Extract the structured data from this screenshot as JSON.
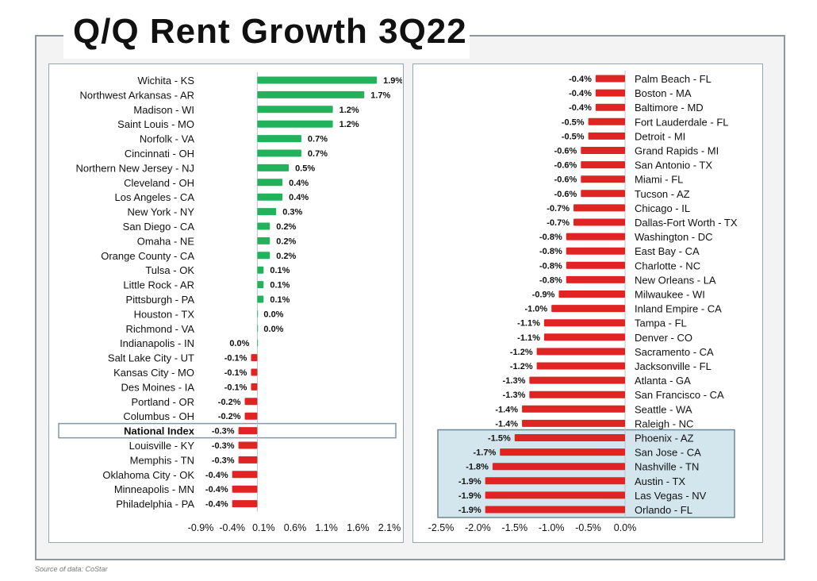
{
  "title": "Q/Q Rent Growth 3Q22",
  "source": "Source of data: CoStar",
  "chart_data": [
    {
      "type": "bar",
      "orientation": "horizontal",
      "xlim": [
        -0.9,
        2.1
      ],
      "xticks": [
        "-0.9%",
        "-0.4%",
        "0.1%",
        "0.6%",
        "1.1%",
        "1.6%",
        "2.1%"
      ],
      "highlighted": [
        "National Index"
      ],
      "categories": [
        "Wichita - KS",
        "Northwest Arkansas - AR",
        "Madison - WI",
        "Saint Louis - MO",
        "Norfolk - VA",
        "Cincinnati - OH",
        "Northern New Jersey - NJ",
        "Cleveland - OH",
        "Los Angeles - CA",
        "New York - NY",
        "San Diego - CA",
        "Omaha - NE",
        "Orange County - CA",
        "Tulsa - OK",
        "Little Rock - AR",
        "Pittsburgh - PA",
        "Houston - TX",
        "Richmond - VA",
        "Indianapolis - IN",
        "Salt Lake City - UT",
        "Kansas City - MO",
        "Des Moines - IA",
        "Portland - OR",
        "Columbus - OH",
        "National Index",
        "Louisville - KY",
        "Memphis - TN",
        "Oklahoma City - OK",
        "Minneapolis - MN",
        "Philadelphia - PA"
      ],
      "values": [
        1.9,
        1.7,
        1.2,
        1.2,
        0.7,
        0.7,
        0.5,
        0.4,
        0.4,
        0.3,
        0.2,
        0.2,
        0.2,
        0.1,
        0.1,
        0.1,
        0.0,
        0.0,
        0.0,
        -0.1,
        -0.1,
        -0.1,
        -0.2,
        -0.2,
        -0.3,
        -0.3,
        -0.3,
        -0.4,
        -0.4,
        -0.4
      ],
      "value_labels": [
        "1.9%",
        "1.7%",
        "1.2%",
        "1.2%",
        "0.7%",
        "0.7%",
        "0.5%",
        "0.4%",
        "0.4%",
        "0.3%",
        "0.2%",
        "0.2%",
        "0.2%",
        "0.1%",
        "0.1%",
        "0.1%",
        "0.0%",
        "0.0%",
        "0.0%",
        "-0.1%",
        "-0.1%",
        "-0.1%",
        "-0.2%",
        "-0.2%",
        "-0.3%",
        "-0.3%",
        "-0.3%",
        "-0.4%",
        "-0.4%",
        "-0.4%"
      ],
      "colors": {
        "positive": "#22b25c",
        "negative": "#e02424"
      }
    },
    {
      "type": "bar",
      "orientation": "horizontal",
      "xlim": [
        -2.5,
        0.0
      ],
      "xticks": [
        "-2.5%",
        "-2.0%",
        "-1.5%",
        "-1.0%",
        "-0.5%",
        "0.0%"
      ],
      "highlighted": [
        "Phoenix - AZ",
        "San Jose - CA",
        "Nashville - TN",
        "Austin - TX",
        "Las Vegas - NV",
        "Orlando - FL"
      ],
      "categories": [
        "Palm Beach - FL",
        "Boston - MA",
        "Baltimore - MD",
        "Fort Lauderdale - FL",
        "Detroit - MI",
        "Grand Rapids - MI",
        "San Antonio - TX",
        "Miami - FL",
        "Tucson - AZ",
        "Chicago - IL",
        "Dallas-Fort Worth - TX",
        "Washington - DC",
        "East Bay - CA",
        "Charlotte - NC",
        "New Orleans - LA",
        "Milwaukee - WI",
        "Inland Empire - CA",
        "Tampa - FL",
        "Denver - CO",
        "Sacramento - CA",
        "Jacksonville - FL",
        "Atlanta - GA",
        "San Francisco - CA",
        "Seattle - WA",
        "Raleigh - NC",
        "Phoenix - AZ",
        "San Jose - CA",
        "Nashville - TN",
        "Austin - TX",
        "Las Vegas - NV",
        "Orlando - FL"
      ],
      "values": [
        -0.4,
        -0.4,
        -0.4,
        -0.5,
        -0.5,
        -0.6,
        -0.6,
        -0.6,
        -0.6,
        -0.7,
        -0.7,
        -0.8,
        -0.8,
        -0.8,
        -0.8,
        -0.9,
        -1.0,
        -1.1,
        -1.1,
        -1.2,
        -1.2,
        -1.3,
        -1.3,
        -1.4,
        -1.4,
        -1.5,
        -1.7,
        -1.8,
        -1.9,
        -1.9,
        -1.9
      ],
      "value_labels": [
        "-0.4%",
        "-0.4%",
        "-0.4%",
        "-0.5%",
        "-0.5%",
        "-0.6%",
        "-0.6%",
        "-0.6%",
        "-0.6%",
        "-0.7%",
        "-0.7%",
        "-0.8%",
        "-0.8%",
        "-0.8%",
        "-0.8%",
        "-0.9%",
        "-1.0%",
        "-1.1%",
        "-1.1%",
        "-1.2%",
        "-1.2%",
        "-1.3%",
        "-1.3%",
        "-1.4%",
        "-1.4%",
        "-1.5%",
        "-1.7%",
        "-1.8%",
        "-1.9%",
        "-1.9%",
        "-1.9%"
      ],
      "colors": {
        "negative": "#e02424",
        "highlight_fill": "#d3e6ee"
      }
    }
  ]
}
